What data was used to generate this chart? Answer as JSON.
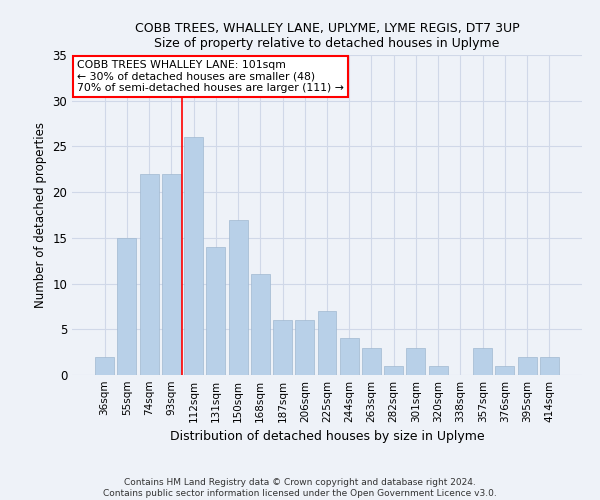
{
  "title1": "COBB TREES, WHALLEY LANE, UPLYME, LYME REGIS, DT7 3UP",
  "title2": "Size of property relative to detached houses in Uplyme",
  "xlabel": "Distribution of detached houses by size in Uplyme",
  "ylabel": "Number of detached properties",
  "categories": [
    "36sqm",
    "55sqm",
    "74sqm",
    "93sqm",
    "112sqm",
    "131sqm",
    "150sqm",
    "168sqm",
    "187sqm",
    "206sqm",
    "225sqm",
    "244sqm",
    "263sqm",
    "282sqm",
    "301sqm",
    "320sqm",
    "338sqm",
    "357sqm",
    "376sqm",
    "395sqm",
    "414sqm"
  ],
  "values": [
    2,
    15,
    22,
    22,
    26,
    14,
    17,
    11,
    6,
    6,
    7,
    4,
    3,
    1,
    3,
    1,
    0,
    3,
    1,
    2,
    2
  ],
  "bar_color": "#b8d0e8",
  "bar_edge_color": "#a0b8d0",
  "vline_x_index": 3.5,
  "annotation_text_line1": "COBB TREES WHALLEY LANE: 101sqm",
  "annotation_text_line2": "← 30% of detached houses are smaller (48)",
  "annotation_text_line3": "70% of semi-detached houses are larger (111) →",
  "annotation_box_color": "white",
  "annotation_box_edge_color": "red",
  "vline_color": "red",
  "grid_color": "#d0d8e8",
  "background_color": "#eef2f8",
  "footer": "Contains HM Land Registry data © Crown copyright and database right 2024.\nContains public sector information licensed under the Open Government Licence v3.0.",
  "ylim": [
    0,
    35
  ],
  "yticks": [
    0,
    5,
    10,
    15,
    20,
    25,
    30,
    35
  ]
}
